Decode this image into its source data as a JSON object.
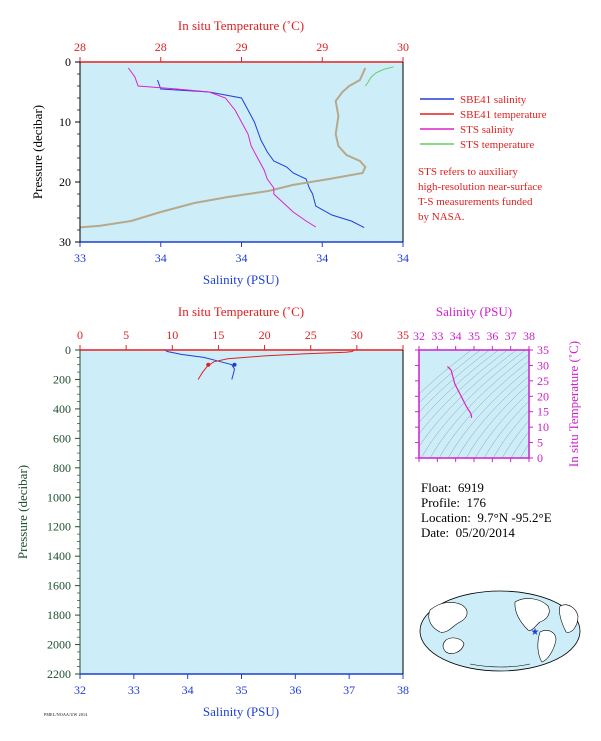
{
  "colors": {
    "plot_bg": "#cdeef9",
    "salinity": "#1f3fd6",
    "temperature": "#e02020",
    "sts_salinity": "#e020c8",
    "sts_temperature": "#60d060",
    "overlap": "#b8a88a",
    "pressure_axis": "#1f4f2f",
    "ts_axis": "#cc22cc",
    "marker": "#1f3fd6"
  },
  "info": {
    "float_label": "Float:",
    "float_value": "6919",
    "profile_label": "Profile:",
    "profile_value": "176",
    "location_label": "Location:",
    "location_value": "9.7°N -95.2°E",
    "date_label": "Date:",
    "date_value": "05/20/2014"
  },
  "note": {
    "lines": [
      "STS refers to auxiliary",
      "high-resolution near-surface",
      "T-S measurements funded",
      "by NASA."
    ]
  },
  "stamp_text": "PMEL/NOAA/UW 2014",
  "map": {
    "marker_lat": 9.7,
    "marker_lon": -95.2,
    "marker_icon": "float-location-star"
  },
  "chart_data": [
    {
      "type": "line",
      "id": "top-profile",
      "title": "",
      "x_top_label": "In situ Temperature (˚C)",
      "x_top_ticks": [
        "28",
        "28",
        "29",
        "29",
        "30"
      ],
      "x_top_lim": [
        27.6,
        30.0
      ],
      "x_bottom_label": "Salinity (PSU)",
      "x_bottom_ticks": [
        "33",
        "34",
        "34",
        "34",
        "34"
      ],
      "x_bottom_lim": [
        33.0,
        34.0
      ],
      "ylabel": "Pressure (decibar)",
      "y_ticks": [
        "0",
        "10",
        "20",
        "30"
      ],
      "ylim": [
        0,
        30
      ],
      "y_inverted": true,
      "legend": [
        {
          "name": "SBE41 salinity",
          "color": "salinity"
        },
        {
          "name": "SBE41 temperature",
          "color": "temperature"
        },
        {
          "name": "STS salinity",
          "color": "sts_salinity"
        },
        {
          "name": "STS temperature",
          "color": "sts_temperature"
        }
      ],
      "series": [
        {
          "name": "SBE41 salinity",
          "axis": "salinity",
          "color": "salinity",
          "points": [
            [
              33.24,
              3.0
            ],
            [
              33.25,
              4.5
            ],
            [
              33.4,
              5.0
            ],
            [
              33.5,
              6.0
            ],
            [
              33.52,
              8.0
            ],
            [
              33.54,
              10.0
            ],
            [
              33.56,
              13.0
            ],
            [
              33.58,
              15.0
            ],
            [
              33.6,
              16.5
            ],
            [
              33.64,
              17.5
            ],
            [
              33.66,
              18.5
            ],
            [
              33.7,
              19.5
            ],
            [
              33.71,
              21.0
            ],
            [
              33.72,
              22.0
            ],
            [
              33.73,
              24.0
            ],
            [
              33.78,
              25.5
            ],
            [
              33.84,
              26.5
            ],
            [
              33.88,
              27.6
            ]
          ]
        },
        {
          "name": "SBE41 temperature",
          "axis": "temperature",
          "color": "overlap",
          "points": [
            [
              29.72,
              1.0
            ],
            [
              29.68,
              3.0
            ],
            [
              29.6,
              4.0
            ],
            [
              29.55,
              5.0
            ],
            [
              29.5,
              6.5
            ],
            [
              29.52,
              9.0
            ],
            [
              29.5,
              12.0
            ],
            [
              29.52,
              14.0
            ],
            [
              29.58,
              15.5
            ],
            [
              29.68,
              16.5
            ],
            [
              29.72,
              17.5
            ],
            [
              29.7,
              18.5
            ],
            [
              29.45,
              19.5
            ],
            [
              29.18,
              20.5
            ],
            [
              29.0,
              21.5
            ],
            [
              28.7,
              22.5
            ],
            [
              28.45,
              23.5
            ],
            [
              28.2,
              25.0
            ],
            [
              27.98,
              26.5
            ],
            [
              27.75,
              27.3
            ],
            [
              27.58,
              27.6
            ]
          ]
        },
        {
          "name": "STS salinity",
          "axis": "salinity",
          "color": "sts_salinity",
          "points": [
            [
              33.15,
              1.0
            ],
            [
              33.17,
              2.5
            ],
            [
              33.18,
              4.0
            ],
            [
              33.3,
              4.5
            ],
            [
              33.4,
              5.0
            ],
            [
              33.45,
              6.0
            ],
            [
              33.48,
              8.0
            ],
            [
              33.5,
              10.0
            ],
            [
              33.52,
              12.0
            ],
            [
              33.53,
              14.0
            ],
            [
              33.55,
              16.0
            ],
            [
              33.57,
              18.0
            ],
            [
              33.58,
              19.5
            ],
            [
              33.6,
              21.0
            ],
            [
              33.6,
              22.0
            ],
            [
              33.63,
              23.5
            ],
            [
              33.66,
              25.0
            ],
            [
              33.7,
              26.5
            ],
            [
              33.73,
              27.5
            ]
          ]
        },
        {
          "name": "STS temperature",
          "axis": "temperature",
          "color": "sts_temperature",
          "points": [
            [
              29.93,
              0.8
            ],
            [
              29.86,
              1.2
            ],
            [
              29.8,
              1.8
            ],
            [
              29.76,
              2.6
            ],
            [
              29.74,
              3.4
            ],
            [
              29.72,
              4.0
            ]
          ]
        }
      ]
    },
    {
      "type": "line",
      "id": "full-profile",
      "title": "",
      "x_top_label": "In situ Temperature (˚C)",
      "x_top_ticks": [
        "0",
        "5",
        "10",
        "15",
        "20",
        "25",
        "30",
        "35"
      ],
      "x_top_lim": [
        0,
        35
      ],
      "x_bottom_label": "Salinity (PSU)",
      "x_bottom_ticks": [
        "32",
        "33",
        "34",
        "35",
        "36",
        "37",
        "38"
      ],
      "x_bottom_lim": [
        32,
        38
      ],
      "ylabel": "Pressure (decibar)",
      "y_ticks": [
        "0",
        "200",
        "400",
        "600",
        "800",
        "1000",
        "1200",
        "1400",
        "1600",
        "1800",
        "2000",
        "2200"
      ],
      "ylim": [
        0,
        2200
      ],
      "y_inverted": true,
      "series": [
        {
          "name": "SBE41 salinity",
          "axis": "salinity",
          "color": "salinity",
          "points": [
            [
              33.58,
              0
            ],
            [
              33.62,
              10
            ],
            [
              33.75,
              20
            ],
            [
              33.88,
              30
            ],
            [
              34.3,
              50
            ],
            [
              34.62,
              80
            ],
            [
              34.82,
              100
            ],
            [
              34.87,
              130
            ],
            [
              34.85,
              160
            ],
            [
              34.82,
              200
            ]
          ]
        },
        {
          "name": "SBE41 temperature",
          "axis": "temperature",
          "color": "temperature",
          "points": [
            [
              29.7,
              0
            ],
            [
              29.5,
              10
            ],
            [
              28.8,
              15
            ],
            [
              24.5,
              25
            ],
            [
              20.0,
              40
            ],
            [
              16.0,
              60
            ],
            [
              14.5,
              80
            ],
            [
              13.8,
              110
            ],
            [
              13.3,
              150
            ],
            [
              12.8,
              200
            ]
          ]
        }
      ],
      "markers": [
        {
          "name": "deepest salinity marker",
          "axis": "salinity",
          "x": 34.87,
          "y": 100
        },
        {
          "name": "deepest temperature marker",
          "axis": "temperature",
          "x": 13.9,
          "y": 100
        }
      ]
    },
    {
      "type": "line",
      "id": "ts-diagram",
      "title": "",
      "x_top_label": "Salinity (PSU)",
      "x_top_ticks": [
        "32",
        "33",
        "34",
        "35",
        "36",
        "37",
        "38"
      ],
      "x_top_lim": [
        32,
        38
      ],
      "ylabel": "In situ Temperature (˚C)",
      "y_ticks": [
        "35",
        "30",
        "25",
        "20",
        "15",
        "10",
        "5",
        "0"
      ],
      "ylim": [
        0,
        35
      ],
      "series": [
        {
          "name": "T-S curve",
          "color": "sts_salinity",
          "points": [
            [
              33.55,
              29.7
            ],
            [
              33.6,
              29.4
            ],
            [
              33.75,
              28.5
            ],
            [
              33.95,
              24.0
            ],
            [
              34.3,
              20.0
            ],
            [
              34.6,
              16.5
            ],
            [
              34.82,
              14.5
            ],
            [
              34.87,
              13.5
            ],
            [
              34.85,
              13.0
            ]
          ]
        }
      ]
    }
  ]
}
